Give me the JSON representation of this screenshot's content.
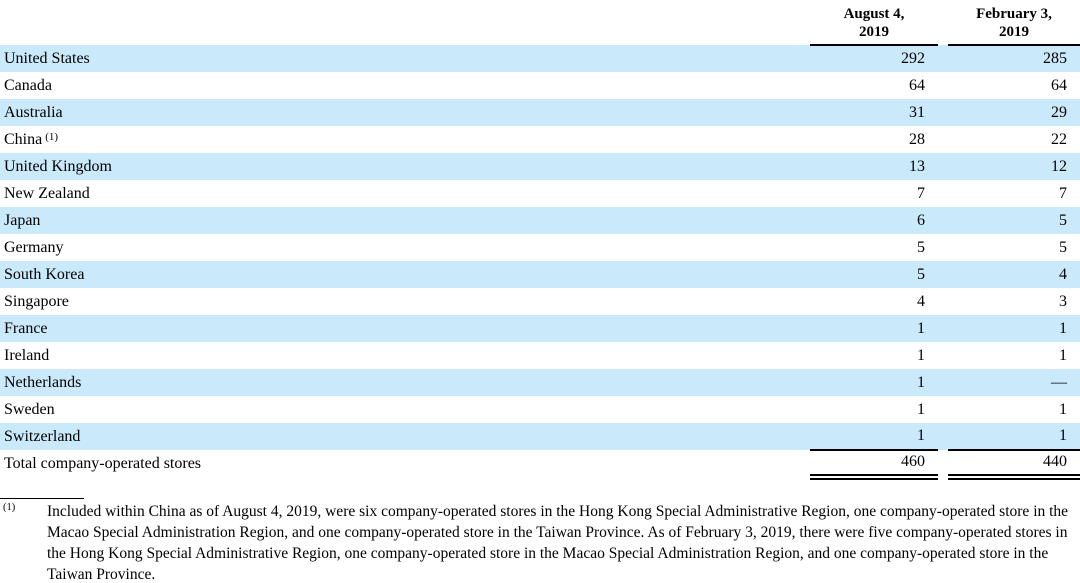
{
  "table": {
    "columns": [
      {
        "line1": "August 4,",
        "line2": "2019"
      },
      {
        "line1": "February 3,",
        "line2": "2019"
      }
    ],
    "rows": [
      {
        "country": "United States",
        "values": [
          "292",
          "285"
        ]
      },
      {
        "country": "Canada",
        "values": [
          "64",
          "64"
        ]
      },
      {
        "country": "Australia",
        "values": [
          "31",
          "29"
        ]
      },
      {
        "country": "China",
        "footnote_marker": "(1)",
        "values": [
          "28",
          "22"
        ]
      },
      {
        "country": "United Kingdom",
        "values": [
          "13",
          "12"
        ]
      },
      {
        "country": "New Zealand",
        "values": [
          "7",
          "7"
        ]
      },
      {
        "country": "Japan",
        "values": [
          "6",
          "5"
        ]
      },
      {
        "country": "Germany",
        "values": [
          "5",
          "5"
        ]
      },
      {
        "country": "South Korea",
        "values": [
          "5",
          "4"
        ]
      },
      {
        "country": "Singapore",
        "values": [
          "4",
          "3"
        ]
      },
      {
        "country": "France",
        "values": [
          "1",
          "1"
        ]
      },
      {
        "country": "Ireland",
        "values": [
          "1",
          "1"
        ]
      },
      {
        "country": "Netherlands",
        "values": [
          "1",
          "—"
        ]
      },
      {
        "country": "Sweden",
        "values": [
          "1",
          "1"
        ]
      },
      {
        "country": "Switzerland",
        "values": [
          "1",
          "1"
        ]
      }
    ],
    "total": {
      "label": "Total company-operated stores",
      "values": [
        "460",
        "440"
      ]
    }
  },
  "footnote": {
    "marker": "(1)",
    "text": "Included within China as of August 4, 2019, were six company-operated stores in the Hong Kong Special Administrative Region, one company-operated store in the Macao Special Administration Region, and one company-operated store in the Taiwan Province. As of February 3, 2019, there were five company-operated stores in the Hong Kong Special Administrative Region, one company-operated store in the Macao Special Administration Region, and one company-operated store in the Taiwan Province."
  },
  "colors": {
    "row_stripe": "#CAE9FA",
    "text": "#000000",
    "border": "#000000",
    "background": "#FFFFFF"
  }
}
